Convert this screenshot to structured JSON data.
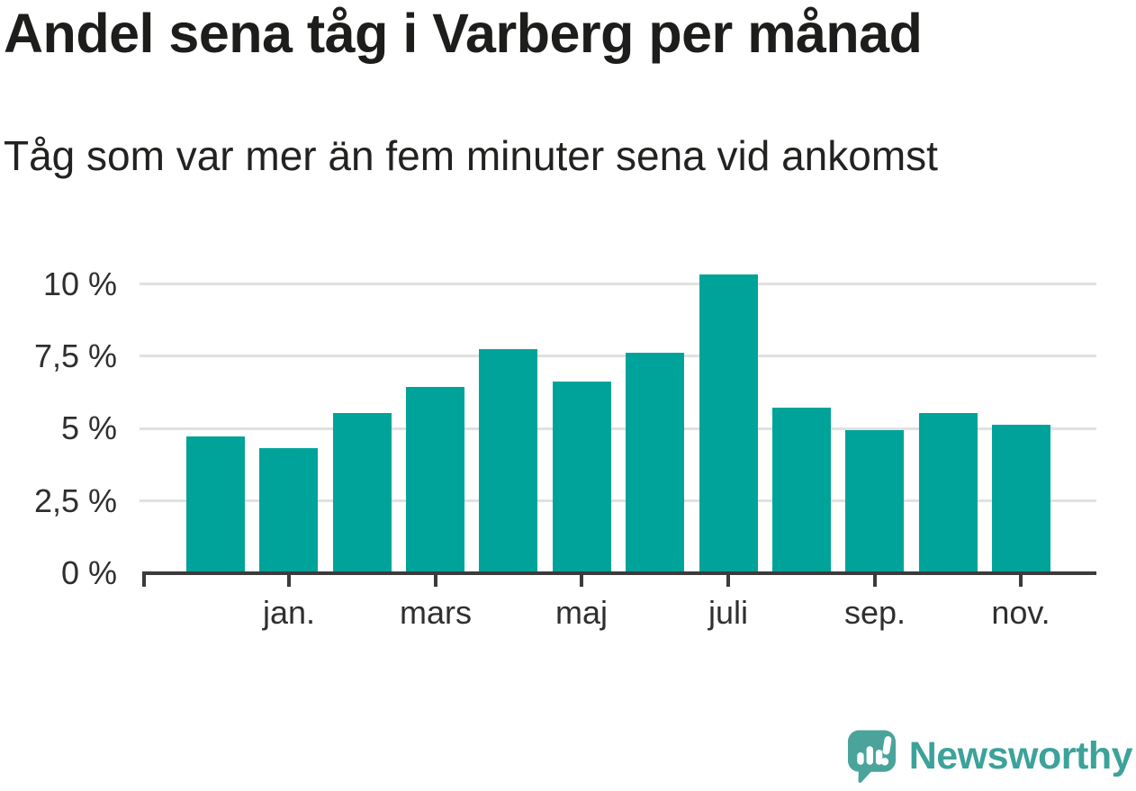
{
  "chart_data": {
    "type": "bar",
    "title": "Andel sena tåg i Varberg per månad",
    "subtitle": "Tåg som var mer än fem minuter sena vid ankomst",
    "unit": "%",
    "categories": [
      "",
      "jan.",
      "",
      "mars",
      "",
      "maj",
      "",
      "juli",
      "",
      "sep.",
      "",
      "nov."
    ],
    "values": [
      4.7,
      4.3,
      5.5,
      6.4,
      7.7,
      6.6,
      7.6,
      10.3,
      5.7,
      4.9,
      5.5,
      5.1
    ],
    "y_ticks": [
      {
        "label": "0 %",
        "value": 0
      },
      {
        "label": "2,5 %",
        "value": 2.5
      },
      {
        "label": "5 %",
        "value": 5
      },
      {
        "label": "7,5 %",
        "value": 7.5
      },
      {
        "label": "10 %",
        "value": 10
      }
    ],
    "ylim": [
      0,
      11
    ],
    "grid": true,
    "legend": "none",
    "bar_color": "#00a39a",
    "gridline_color": "#e1e1e1",
    "axis_color": "#3b3b3b",
    "text_color": "#2f2f2f"
  },
  "branding": {
    "name": "Newsworthy",
    "text_color": "#3ca29a",
    "icon_color": "#4aa49b",
    "icon": "newsworthy-speech-bubble-bar-chart-icon"
  }
}
